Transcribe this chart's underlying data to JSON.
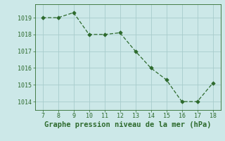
{
  "x": [
    7,
    8,
    9,
    10,
    11,
    12,
    13,
    14,
    15,
    16,
    17,
    18
  ],
  "y": [
    1019.0,
    1019.0,
    1019.3,
    1018.0,
    1018.0,
    1018.1,
    1017.0,
    1016.0,
    1015.3,
    1014.0,
    1014.0,
    1015.1
  ],
  "line_color": "#2d6a2d",
  "marker_color": "#2d6a2d",
  "bg_color": "#cce8e8",
  "grid_color": "#a8cccc",
  "xlabel": "Graphe pression niveau de la mer (hPa)",
  "xlim": [
    6.5,
    18.5
  ],
  "ylim": [
    1013.5,
    1019.8
  ],
  "yticks": [
    1014,
    1015,
    1016,
    1017,
    1018,
    1019
  ],
  "xticks": [
    7,
    8,
    9,
    10,
    11,
    12,
    13,
    14,
    15,
    16,
    17,
    18
  ],
  "tick_fontsize": 6.0,
  "xlabel_fontsize": 7.5
}
